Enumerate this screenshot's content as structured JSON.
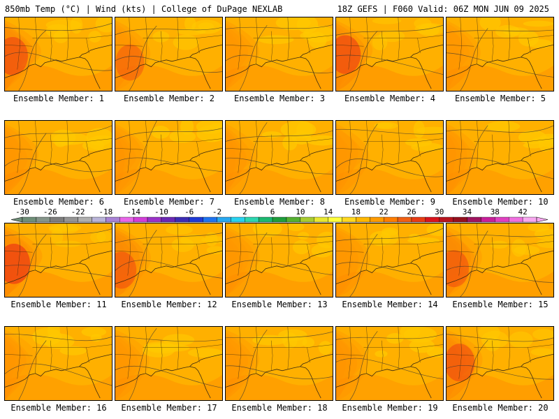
{
  "header": {
    "left": "850mb Temp (°C) | Wind (kts) | College of DuPage NEXLAB",
    "right": "18Z GEFS | F060 Valid: 06Z MON JUN 09 2025"
  },
  "members": [
    {
      "label": "Ensemble Member: 1",
      "heat": 0.82
    },
    {
      "label": "Ensemble Member: 2",
      "heat": 0.7
    },
    {
      "label": "Ensemble Member: 3",
      "heat": 0.55
    },
    {
      "label": "Ensemble Member: 4",
      "heat": 0.85
    },
    {
      "label": "Ensemble Member: 5",
      "heat": 0.6
    },
    {
      "label": "Ensemble Member: 6",
      "heat": 0.55
    },
    {
      "label": "Ensemble Member: 7",
      "heat": 0.35
    },
    {
      "label": "Ensemble Member: 8",
      "heat": 0.4
    },
    {
      "label": "Ensemble Member: 9",
      "heat": 0.5
    },
    {
      "label": "Ensemble Member: 10",
      "heat": 0.35
    },
    {
      "label": "Ensemble Member: 11",
      "heat": 0.95
    },
    {
      "label": "Ensemble Member: 12",
      "heat": 0.75
    },
    {
      "label": "Ensemble Member: 13",
      "heat": 0.6
    },
    {
      "label": "Ensemble Member: 14",
      "heat": 0.55
    },
    {
      "label": "Ensemble Member: 15",
      "heat": 0.75
    },
    {
      "label": "Ensemble Member: 16",
      "heat": 0.45
    },
    {
      "label": "Ensemble Member: 17",
      "heat": 0.6
    },
    {
      "label": "Ensemble Member: 18",
      "heat": 0.55
    },
    {
      "label": "Ensemble Member: 19",
      "heat": 0.4
    },
    {
      "label": "Ensemble Member: 20",
      "heat": 0.8
    }
  ],
  "colorbar": {
    "labels": [
      "-30",
      "-26",
      "-22",
      "-18",
      "-14",
      "-10",
      "-6",
      "-2",
      "2",
      "6",
      "10",
      "14",
      "18",
      "22",
      "26",
      "30",
      "34",
      "38",
      "42"
    ],
    "colors": [
      "#6f8f78",
      "#85958a",
      "#7d7d7d",
      "#959595",
      "#afafaf",
      "#b9b4d8",
      "#a882d6",
      "#e866e8",
      "#d23ed8",
      "#9a32c8",
      "#6a28b4",
      "#3c2cb4",
      "#1f3ad6",
      "#1e74f0",
      "#28a8f0",
      "#28d2f0",
      "#2cd6b0",
      "#1cb870",
      "#1e9e3c",
      "#54b030",
      "#a8cc30",
      "#e8e832",
      "#ffff3c",
      "#ffd820",
      "#ffb800",
      "#ff9c00",
      "#ff7e00",
      "#f06014",
      "#e83c14",
      "#d8141e",
      "#b8141e",
      "#94101e",
      "#a01460",
      "#c8209a",
      "#e040c0",
      "#f070e0",
      "#f8a8f0"
    ]
  }
}
